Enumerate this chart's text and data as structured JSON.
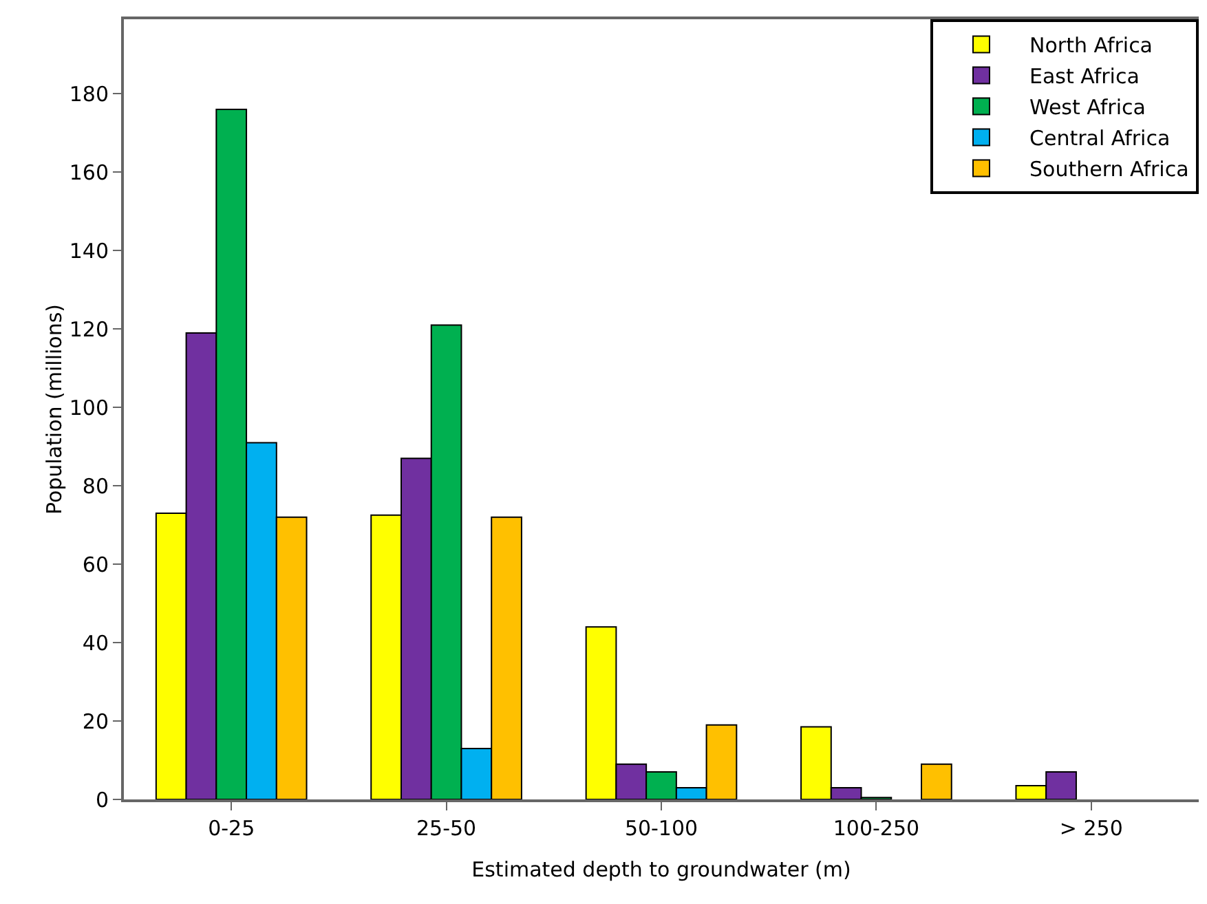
{
  "chart_data": {
    "type": "bar",
    "xlabel": "Estimated depth to groundwater (m)",
    "ylabel": "Population (millions)",
    "categories": [
      "0-25",
      "25-50",
      "50-100",
      "100-250",
      "> 250"
    ],
    "series": [
      {
        "name": "North Africa",
        "color": "#ffff00",
        "values": [
          73,
          72.5,
          44,
          18.5,
          3.5
        ]
      },
      {
        "name": "East Africa",
        "color": "#7030a0",
        "values": [
          119,
          87,
          9,
          3,
          7
        ]
      },
      {
        "name": "West Africa",
        "color": "#00b050",
        "values": [
          176,
          121,
          7,
          0.5,
          null
        ]
      },
      {
        "name": "Central Africa",
        "color": "#00b0f0",
        "values": [
          91,
          13,
          3,
          null,
          null
        ]
      },
      {
        "name": "Southern Africa",
        "color": "#ffc000",
        "values": [
          72,
          72,
          19,
          9,
          null
        ]
      }
    ],
    "ylim": [
      0,
      199
    ],
    "yticks": [
      0,
      20,
      40,
      60,
      80,
      100,
      120,
      140,
      160,
      180
    ],
    "grid": false,
    "legend": "top right"
  }
}
